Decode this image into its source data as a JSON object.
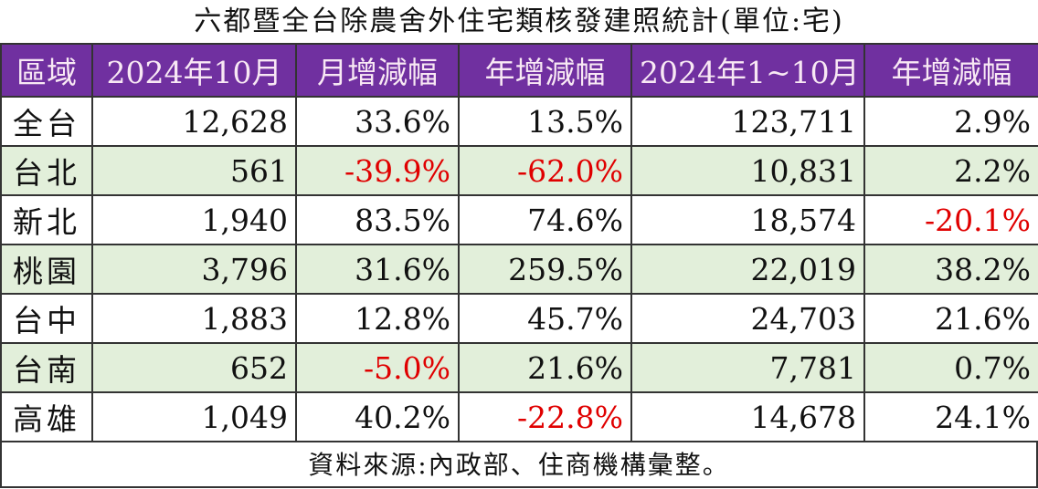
{
  "title": "六都暨全台除農舍外住宅類核發建照統計(單位:宅)",
  "colors": {
    "header_bg": "#7030A0",
    "alt_row_bg": "#E2EFDA",
    "negative": "#e00000"
  },
  "headers": [
    "區域",
    "2024年10月",
    "月增減幅",
    "年增減幅",
    "2024年1~10月",
    "年增減幅"
  ],
  "rows": [
    [
      "全台",
      "12,628",
      "33.6%",
      "13.5%",
      "123,711",
      "2.9%"
    ],
    [
      "台北",
      "561",
      "-39.9%",
      "-62.0%",
      "10,831",
      "2.2%"
    ],
    [
      "新北",
      "1,940",
      "83.5%",
      "74.6%",
      "18,574",
      "-20.1%"
    ],
    [
      "桃園",
      "3,796",
      "31.6%",
      "259.5%",
      "22,019",
      "38.2%"
    ],
    [
      "台中",
      "1,883",
      "12.8%",
      "45.7%",
      "24,703",
      "21.6%"
    ],
    [
      "台南",
      "652",
      "-5.0%",
      "21.6%",
      "7,781",
      "0.7%"
    ],
    [
      "高雄",
      "1,049",
      "40.2%",
      "-22.8%",
      "14,678",
      "24.1%"
    ]
  ],
  "footer": "資料來源:內政部、住商機構彙整。"
}
